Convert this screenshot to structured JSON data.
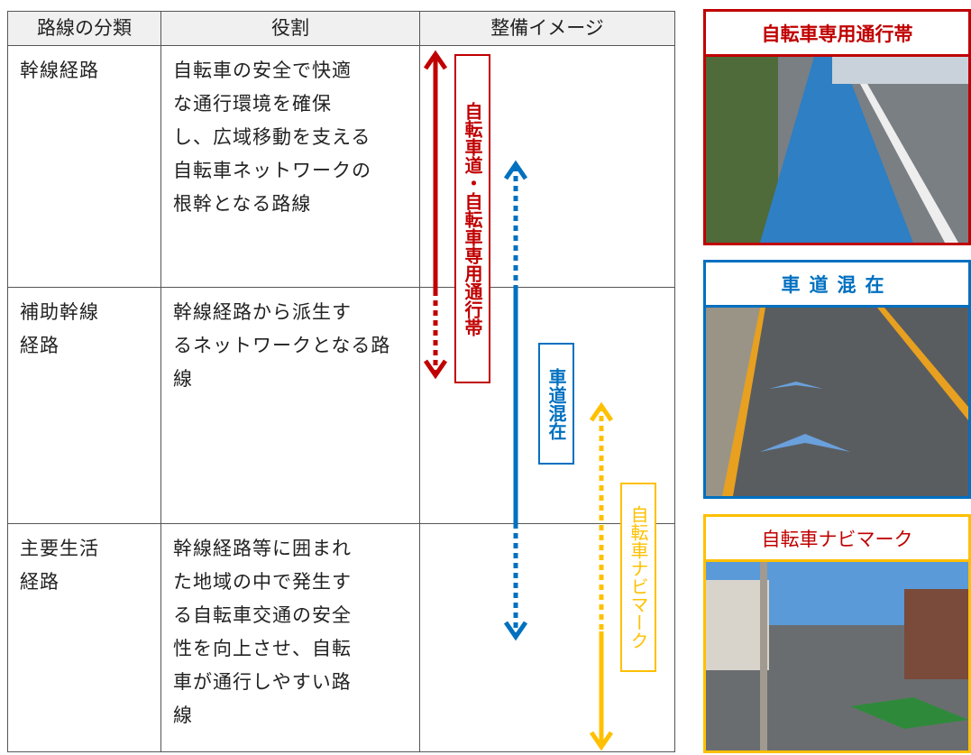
{
  "table": {
    "header": [
      "路線の分類",
      "役割",
      "整備イメージ"
    ],
    "rows": [
      {
        "class": [
          "幹線経路"
        ],
        "role": [
          "自転車の安全で快適",
          "な通行環境を確保",
          "し、広域移動を支える",
          "自転車ネットワークの",
          "根幹となる路線"
        ]
      },
      {
        "class": [
          "補助幹線",
          "経路"
        ],
        "role": [
          "幹線経路から派生す",
          "るネットワークとなる路",
          "線"
        ]
      },
      {
        "class": [
          "主要生活",
          "経路"
        ],
        "role": [
          "幹線経路等に囲まれ",
          "た地域の中で発生す",
          "る自転車交通の安全",
          "性を向上させ、自転",
          "車が通行しやすい路",
          "線"
        ]
      }
    ]
  },
  "arrows": [
    "自転車道・自転車専用通行帯",
    "車道混在",
    "自転車ナビマーク"
  ],
  "photos": [
    "自転車専用通行帯",
    "車道混在",
    "自転車ナビマーク"
  ]
}
